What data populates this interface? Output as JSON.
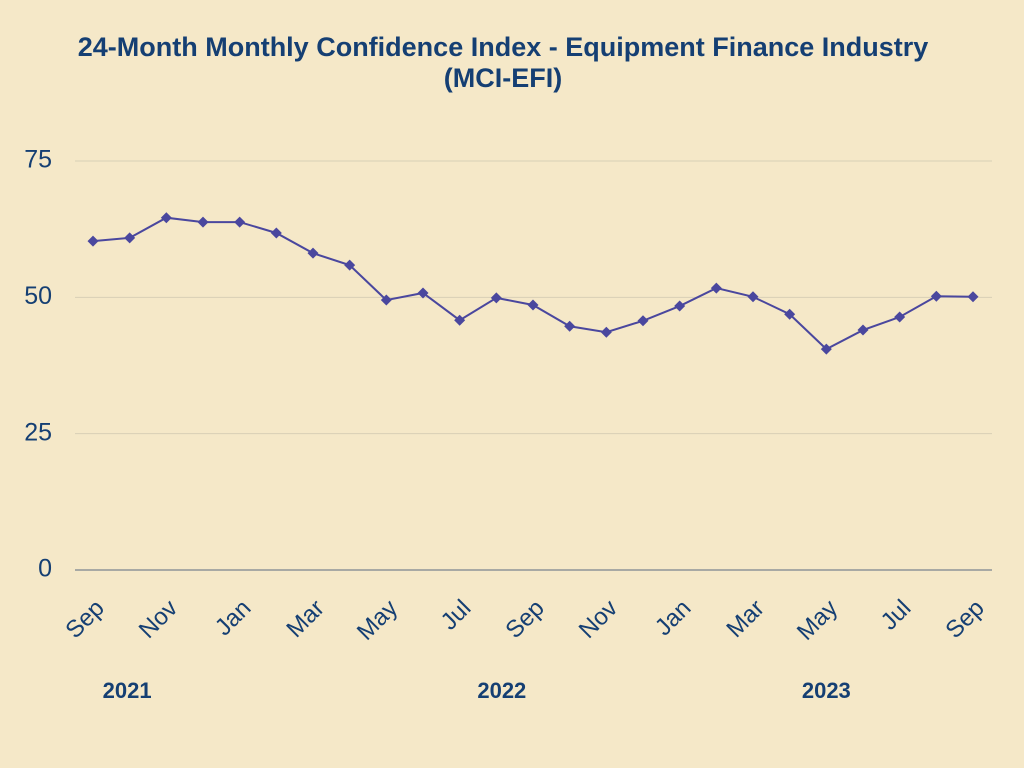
{
  "chart_data": {
    "type": "line",
    "title": "24-Month Monthly Confidence Index - Equipment Finance Industry (MCI-EFI)",
    "categories": [
      "Sep",
      null,
      "Nov",
      null,
      "Jan",
      null,
      "Mar",
      null,
      "May",
      null,
      "Jul",
      null,
      "Sep",
      null,
      "Nov",
      null,
      "Jan",
      null,
      "Mar",
      null,
      "May",
      null,
      "Jul",
      null,
      "Sep"
    ],
    "x_groups": [
      "2021",
      "2022",
      "2023"
    ],
    "series": [
      {
        "name": "MCI-EFI",
        "color": "#4a479e",
        "values": [
          60.3,
          60.9,
          64.6,
          63.8,
          63.8,
          61.8,
          58.1,
          55.9,
          49.5,
          50.8,
          45.8,
          49.9,
          48.6,
          44.7,
          43.6,
          45.7,
          48.4,
          51.7,
          50.1,
          46.9,
          40.5,
          44.0,
          46.4,
          50.2,
          50.1
        ]
      }
    ],
    "ylim": [
      0,
      75
    ],
    "yticks": [
      0,
      25,
      50,
      75
    ],
    "grid": true
  }
}
